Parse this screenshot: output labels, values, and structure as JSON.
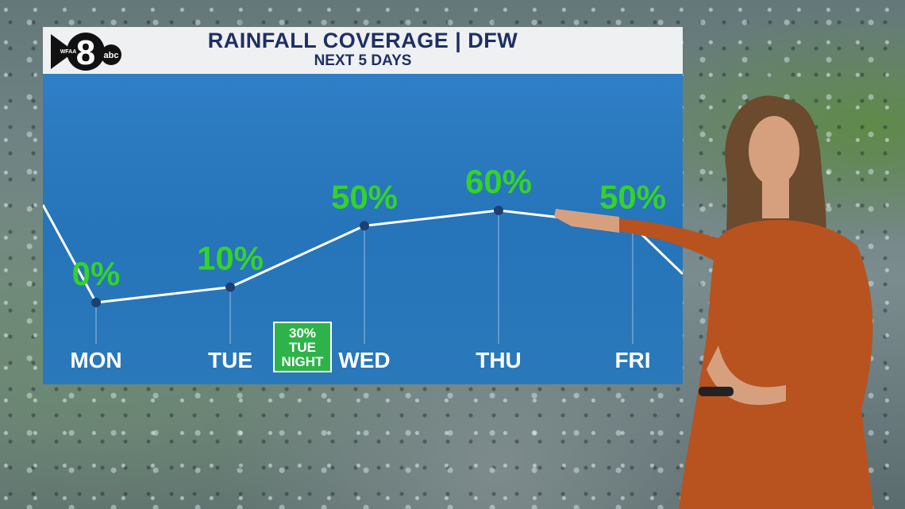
{
  "header": {
    "title": "RAINFALL COVERAGE | DFW",
    "subtitle": "NEXT 5 DAYS"
  },
  "logo": {
    "text_wfaa": "WFAA",
    "text_8": "8",
    "text_abc": "abc"
  },
  "annotation": {
    "line1": "30%",
    "line2": "TUE",
    "line3": "NIGHT"
  },
  "colors": {
    "plot_bg": "#2a79bb",
    "header_bg": "#eef0f2",
    "title": "#1f2f63",
    "value_label": "#35d22a",
    "annotation_bg": "#2eb34a",
    "line": "#ffffff",
    "point": "#1d3f73"
  },
  "chart_data": {
    "type": "line",
    "title": "RAINFALL COVERAGE | DFW",
    "subtitle": "NEXT 5 DAYS",
    "categories": [
      "MON",
      "TUE",
      "WED",
      "THU",
      "FRI"
    ],
    "values": [
      0,
      10,
      50,
      60,
      50
    ],
    "value_labels": [
      "0%",
      "10%",
      "50%",
      "60%",
      "50%"
    ],
    "ylim": [
      0,
      100
    ],
    "grid": false,
    "legend": "none"
  }
}
